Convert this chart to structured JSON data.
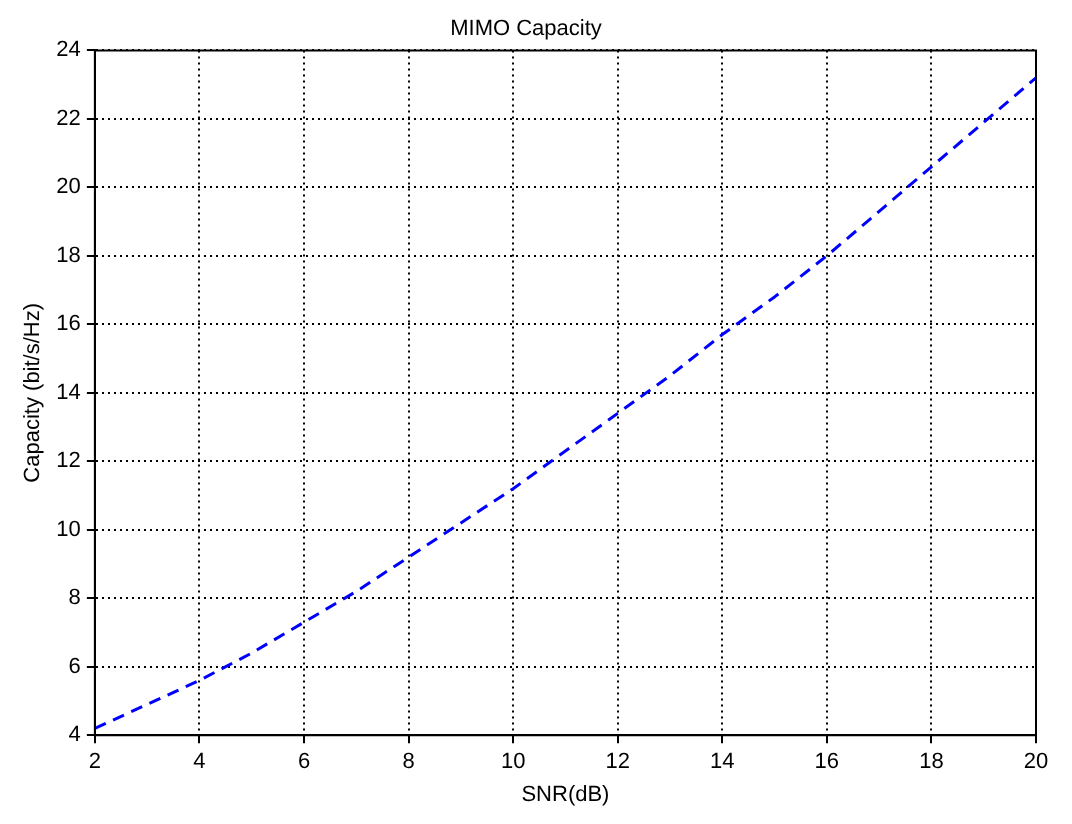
{
  "chart_data": {
    "type": "line",
    "title": "MIMO Capacity",
    "xlabel": "SNR(dB)",
    "ylabel": "Capacity (bit/s/Hz)",
    "x": [
      2,
      3,
      4,
      5,
      6,
      7,
      8,
      9,
      10,
      11,
      12,
      13,
      14,
      15,
      16,
      17,
      18,
      19,
      20
    ],
    "series": [
      {
        "color": "#0000ff",
        "values": [
          4.2,
          4.9,
          5.6,
          6.4,
          7.3,
          8.2,
          9.2,
          10.2,
          11.2,
          12.3,
          13.4,
          14.5,
          15.7,
          16.8,
          18.0,
          19.3,
          20.6,
          21.9,
          23.2
        ]
      }
    ],
    "xlim": [
      2,
      20
    ],
    "xticks": [
      2,
      4,
      6,
      8,
      10,
      12,
      14,
      16,
      18,
      20
    ],
    "ylim": [
      4,
      24
    ],
    "yticks": [
      4,
      6,
      8,
      10,
      12,
      14,
      16,
      18,
      20,
      22,
      24
    ],
    "grid": true,
    "line_style": "dashed",
    "marker": "none",
    "legend": false
  }
}
